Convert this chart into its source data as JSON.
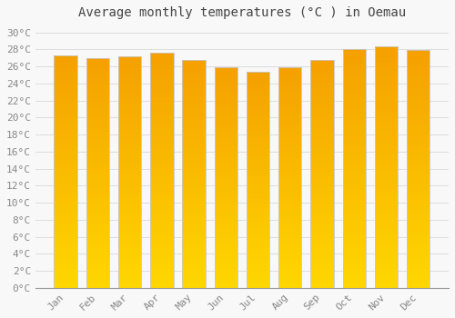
{
  "months": [
    "Jan",
    "Feb",
    "Mar",
    "Apr",
    "May",
    "Jun",
    "Jul",
    "Aug",
    "Sep",
    "Oct",
    "Nov",
    "Dec"
  ],
  "temperatures": [
    27.3,
    27.0,
    27.2,
    27.6,
    26.8,
    25.9,
    25.4,
    25.9,
    26.8,
    28.0,
    28.4,
    27.9
  ],
  "title": "Average monthly temperatures (°C ) in Oemau",
  "ylim_min": 0,
  "ylim_max": 30,
  "ytick_step": 2,
  "bar_color_bottom": "#FFD700",
  "bar_color_top": "#F5A000",
  "bar_edge_color": "#C8C8C8",
  "background_color": "#F8F8F8",
  "grid_color": "#DDDDDD",
  "title_fontsize": 10,
  "tick_fontsize": 8,
  "tick_color": "#888888",
  "title_color": "#444444"
}
